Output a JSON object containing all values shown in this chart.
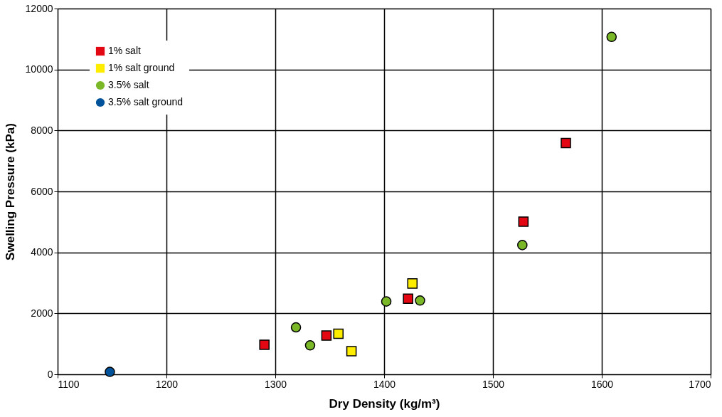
{
  "chart_data": {
    "type": "scatter",
    "xlabel": "Dry Density (kg/m³)",
    "ylabel": "Swelling Pressure (kPa)",
    "xlim": [
      1100,
      1700
    ],
    "xticks": [
      1100,
      1200,
      1300,
      1400,
      1500,
      1600,
      1700
    ],
    "ylim": [
      0,
      12000
    ],
    "yticks": [
      0,
      2000,
      4000,
      6000,
      8000,
      10000,
      12000
    ],
    "grid": true,
    "legend": "top left",
    "series": [
      {
        "name": "1% salt",
        "color": "#e30613",
        "marker": "square",
        "x": [
          1290,
          1347,
          1422,
          1528,
          1567
        ],
        "values": [
          970,
          1270,
          2480,
          5010,
          7590
        ]
      },
      {
        "name": "1% salt ground",
        "color": "#ffed00",
        "marker": "square",
        "x": [
          1358,
          1370,
          1426
        ],
        "values": [
          1330,
          760,
          2980
        ]
      },
      {
        "name": "3.5% salt",
        "color": "#7ab828",
        "marker": "circle",
        "x": [
          1319,
          1332,
          1402,
          1433,
          1527,
          1609
        ],
        "values": [
          1540,
          950,
          2390,
          2420,
          4240,
          11070
        ]
      },
      {
        "name": "3.5% salt ground",
        "color": "#00529b",
        "marker": "circle",
        "x": [
          1148
        ],
        "values": [
          80
        ]
      }
    ]
  }
}
